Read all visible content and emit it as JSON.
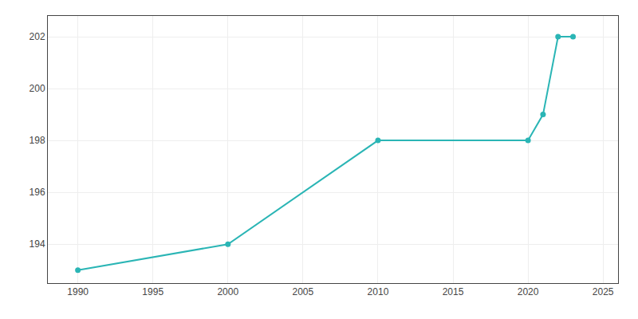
{
  "chart_data": {
    "type": "line",
    "x": [
      1990,
      2000,
      2010,
      2020,
      2021,
      2022,
      2023
    ],
    "values": [
      193,
      194,
      198,
      198,
      199,
      202,
      202
    ],
    "color": "#2ab5b5",
    "marker": "circle",
    "xlim": [
      1988,
      2026
    ],
    "xticks": [
      1990,
      1995,
      2000,
      2005,
      2010,
      2015,
      2020,
      2025
    ],
    "ylim": [
      192.5,
      202.8
    ],
    "yticks": [
      194,
      196,
      198,
      200,
      202
    ],
    "grid": true
  }
}
